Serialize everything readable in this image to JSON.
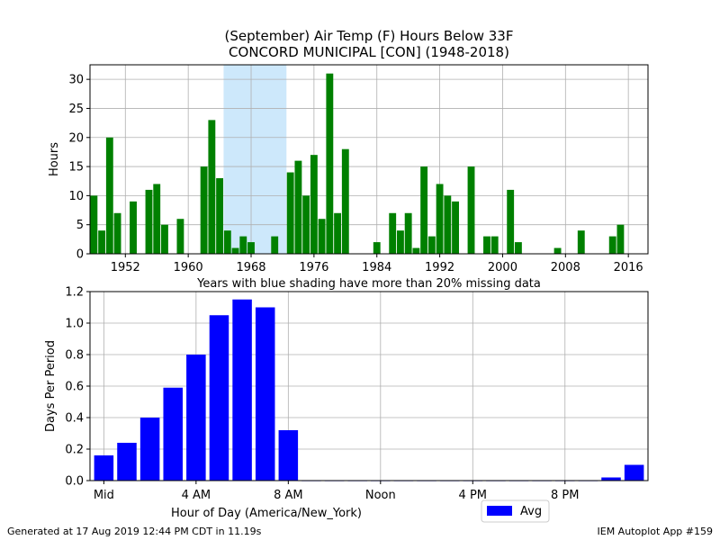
{
  "title_line1": "(September) Air Temp (F) Hours Below 33F",
  "title_line2": "CONCORD MUNICIPAL [CON] (1948-2018)",
  "note": "Years with blue shading have more than 20% missing data",
  "footer_left": "Generated at 17 Aug 2019 12:44 PM CDT in 11.19s",
  "footer_right": "IEM Autoplot App #159",
  "colors": {
    "top_bars": "#008000",
    "bottom_bars": "#0000ff",
    "shading": "#cde8fb",
    "grid": "#b0b0b0"
  },
  "chart_data": [
    {
      "type": "bar",
      "ylabel": "Hours",
      "xlabel": "",
      "xlim": [
        1947.5,
        2018.5
      ],
      "ylim": [
        0,
        32.5
      ],
      "xticks": [
        1952,
        1960,
        1968,
        1976,
        1984,
        1992,
        2000,
        2008,
        2016
      ],
      "yticks": [
        0,
        5,
        10,
        15,
        20,
        25,
        30
      ],
      "grid": true,
      "shaded_years": [
        [
          1964.5,
          1972.5
        ]
      ],
      "x": [
        1948,
        1949,
        1950,
        1951,
        1952,
        1953,
        1954,
        1955,
        1956,
        1957,
        1958,
        1959,
        1960,
        1961,
        1962,
        1963,
        1964,
        1965,
        1966,
        1967,
        1968,
        1969,
        1970,
        1971,
        1972,
        1973,
        1974,
        1975,
        1976,
        1977,
        1978,
        1979,
        1980,
        1981,
        1982,
        1983,
        1984,
        1985,
        1986,
        1987,
        1988,
        1989,
        1990,
        1991,
        1992,
        1993,
        1994,
        1995,
        1996,
        1997,
        1998,
        1999,
        2000,
        2001,
        2002,
        2003,
        2004,
        2005,
        2006,
        2007,
        2008,
        2009,
        2010,
        2011,
        2012,
        2013,
        2014,
        2015,
        2016,
        2017,
        2018
      ],
      "values": [
        10,
        4,
        20,
        7,
        0,
        9,
        0,
        11,
        12,
        5,
        0,
        6,
        0,
        0,
        15,
        23,
        13,
        4,
        1,
        3,
        2,
        0,
        0,
        3,
        0,
        14,
        16,
        10,
        17,
        6,
        31,
        7,
        18,
        0,
        0,
        0,
        2,
        0,
        7,
        4,
        7,
        1,
        15,
        3,
        12,
        10,
        9,
        0,
        15,
        0,
        3,
        3,
        0,
        11,
        2,
        0,
        0,
        0,
        0,
        1,
        0,
        0,
        4,
        0,
        0,
        0,
        3,
        5,
        0,
        0,
        0
      ]
    },
    {
      "type": "bar",
      "xlabel": "Hour of Day (America/New_York)",
      "ylabel": "Days Per Period",
      "xlim": [
        -0.6,
        23.6
      ],
      "ylim": [
        0,
        1.2
      ],
      "xtick_positions": [
        0,
        4,
        8,
        12,
        16,
        20
      ],
      "xtick_labels": [
        "Mid",
        "4 AM",
        "8 AM",
        "Noon",
        "4 PM",
        "8 PM"
      ],
      "yticks": [
        0.0,
        0.2,
        0.4,
        0.6,
        0.8,
        1.0,
        1.2
      ],
      "grid": true,
      "legend": {
        "placement": "bottom-right",
        "entries": [
          "Avg"
        ]
      },
      "series": [
        {
          "name": "Avg",
          "x": [
            0,
            1,
            2,
            3,
            4,
            5,
            6,
            7,
            8,
            9,
            10,
            11,
            12,
            13,
            14,
            15,
            16,
            17,
            18,
            19,
            20,
            21,
            22,
            23
          ],
          "values": [
            0.16,
            0.24,
            0.4,
            0.59,
            0.8,
            1.05,
            1.15,
            1.1,
            0.32,
            0,
            0,
            0,
            0,
            0,
            0,
            0,
            0,
            0,
            0,
            0,
            0,
            0,
            0.02,
            0.1
          ]
        }
      ]
    }
  ]
}
